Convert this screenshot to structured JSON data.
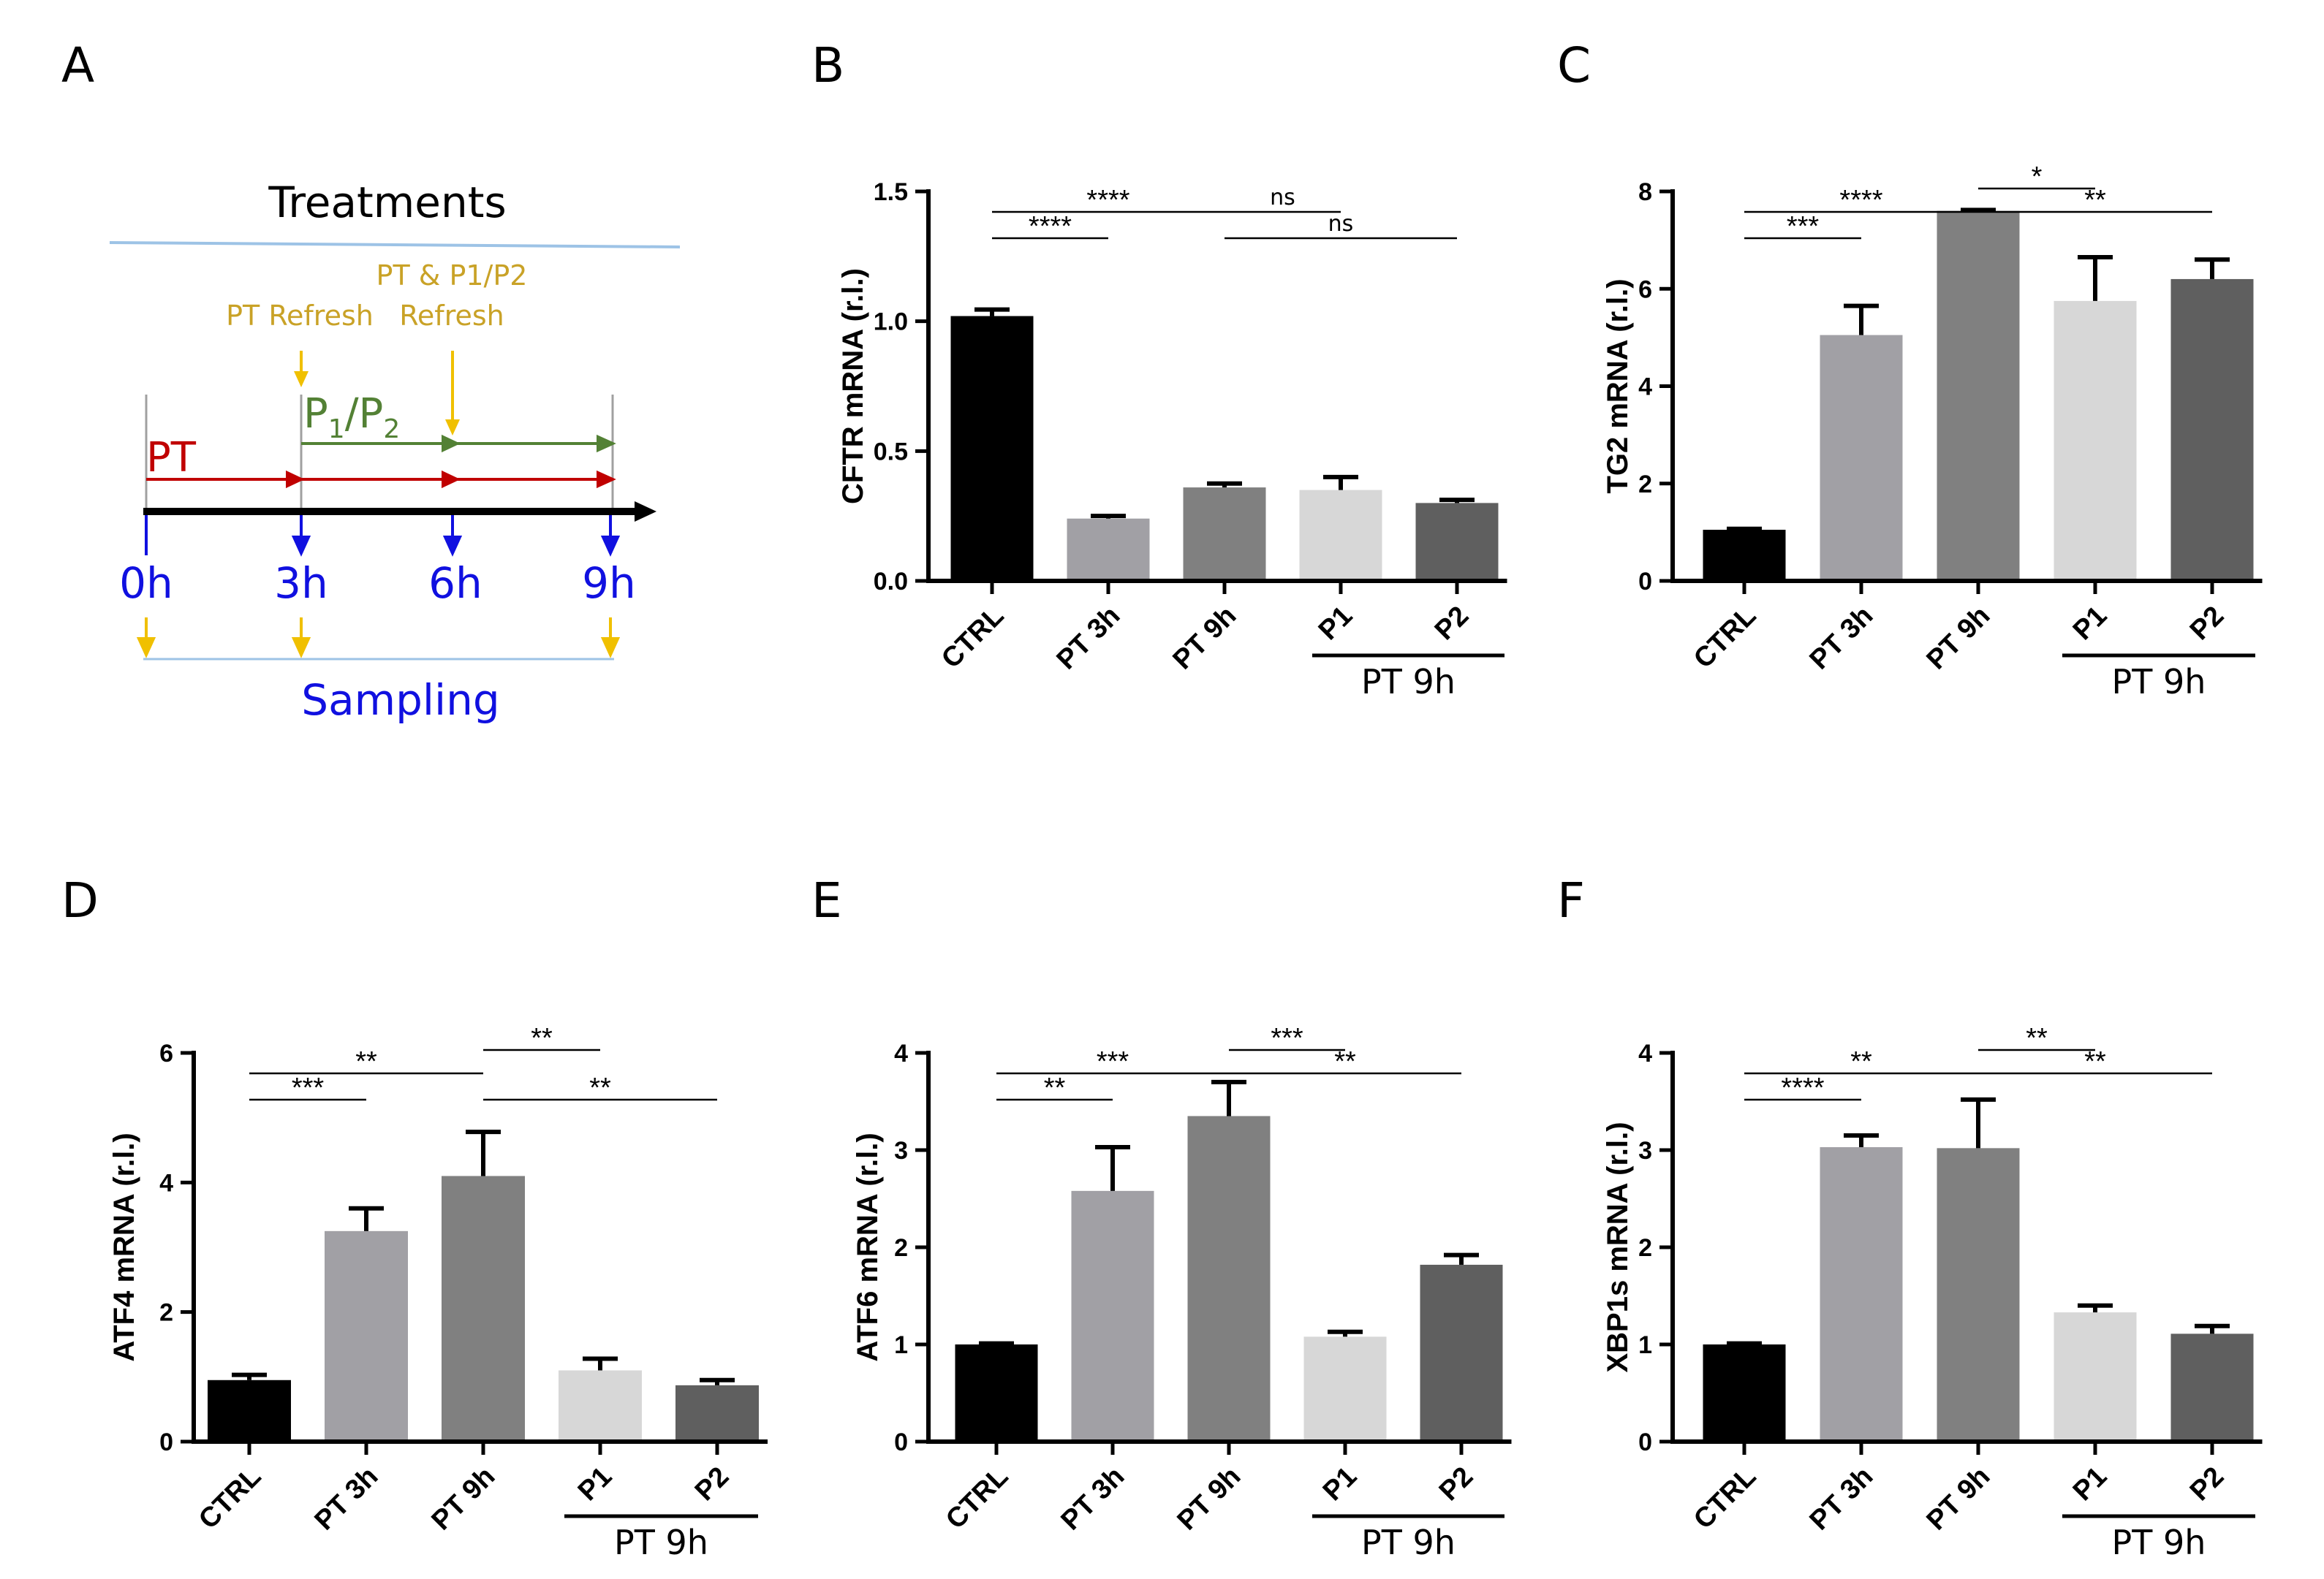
{
  "panel_a": {
    "letter": "A",
    "title": "Treatments",
    "pt_refresh": "PT Refresh",
    "pt_p1p2_line1": "PT & P1/P2",
    "pt_p1p2_line2": "Refresh",
    "p_label_main": "P",
    "p_label_sub1": "1",
    "p_label_slash": "/P",
    "p_label_sub2": "2",
    "pt_label": "PT",
    "times": [
      "0h",
      "3h",
      "6h",
      "9h"
    ],
    "sampling": "Sampling",
    "colors": {
      "title_line": "#9dc3e6",
      "refresh": "#c9a227",
      "refresh_arrow": "#f0c000",
      "p1p2": "#538135",
      "pt": "#c00000",
      "time": "#1010e0",
      "sampling": "#1010e0",
      "sampling_arrow": "#f0c000",
      "axis": "#000000",
      "tick": "#a0a0a0"
    }
  },
  "chart_data": [
    {
      "id": "B",
      "letter": "B",
      "type": "bar",
      "ylabel": "CFTR mRNA (r.l.)",
      "categories": [
        "CTRL",
        "PT 3h",
        "PT 9h",
        "P1",
        "P2"
      ],
      "values": [
        1.02,
        0.24,
        0.36,
        0.35,
        0.3
      ],
      "errors": [
        0.025,
        0.01,
        0.015,
        0.05,
        0.012
      ],
      "ylim": [
        0,
        1.5
      ],
      "yticks": [
        0,
        0.5,
        1.0,
        1.5
      ],
      "ytick_labels": [
        "0.0",
        "0.5",
        "1.0",
        "1.5"
      ],
      "group_label": "PT 9h",
      "significance": [
        {
          "from": 0,
          "to": 1,
          "label": "****",
          "level": 1
        },
        {
          "from": 0,
          "to": 2,
          "label": "****",
          "level": 2
        },
        {
          "from": 2,
          "to": 3,
          "label": "ns",
          "level": 2
        },
        {
          "from": 2,
          "to": 4,
          "label": "ns",
          "level": 1
        }
      ]
    },
    {
      "id": "C",
      "letter": "C",
      "type": "bar",
      "ylabel": "TG2 mRNA (r.l.)",
      "categories": [
        "CTRL",
        "PT 3h",
        "PT 9h",
        "P1",
        "P2"
      ],
      "values": [
        1.05,
        5.05,
        7.6,
        5.75,
        6.2
      ],
      "errors": [
        0.02,
        0.6,
        0.02,
        0.9,
        0.4
      ],
      "ylim": [
        0,
        8
      ],
      "yticks": [
        0,
        2,
        4,
        6,
        8
      ],
      "ytick_labels": [
        "0",
        "2",
        "4",
        "6",
        "8"
      ],
      "group_label": "PT 9h",
      "significance": [
        {
          "from": 0,
          "to": 1,
          "label": "***",
          "level": 1
        },
        {
          "from": 0,
          "to": 2,
          "label": "****",
          "level": 2
        },
        {
          "from": 2,
          "to": 3,
          "label": "*",
          "level": 3
        },
        {
          "from": 2,
          "to": 4,
          "label": "**",
          "level": 2
        }
      ]
    },
    {
      "id": "D",
      "letter": "D",
      "type": "bar",
      "ylabel": "ATF4 mRNA (r.l.)",
      "categories": [
        "CTRL",
        "PT 3h",
        "PT 9h",
        "P1",
        "P2"
      ],
      "values": [
        0.95,
        3.25,
        4.1,
        1.1,
        0.87
      ],
      "errors": [
        0.08,
        0.35,
        0.68,
        0.18,
        0.08
      ],
      "ylim": [
        0,
        6
      ],
      "yticks": [
        0,
        2,
        4,
        6
      ],
      "ytick_labels": [
        "0",
        "2",
        "4",
        "6"
      ],
      "group_label": "PT 9h",
      "significance": [
        {
          "from": 0,
          "to": 1,
          "label": "***",
          "level": 1
        },
        {
          "from": 0,
          "to": 2,
          "label": "**",
          "level": 2
        },
        {
          "from": 2,
          "to": 3,
          "label": "**",
          "level": 3
        },
        {
          "from": 2,
          "to": 4,
          "label": "**",
          "level": 1
        }
      ]
    },
    {
      "id": "E",
      "letter": "E",
      "type": "bar",
      "ylabel": "ATF6 mRNA (r.l.)",
      "categories": [
        "CTRL",
        "PT 3h",
        "PT 9h",
        "P1",
        "P2"
      ],
      "values": [
        1.0,
        2.58,
        3.35,
        1.08,
        1.82
      ],
      "errors": [
        0.01,
        0.45,
        0.35,
        0.05,
        0.1
      ],
      "ylim": [
        0,
        4
      ],
      "yticks": [
        0,
        1,
        2,
        3,
        4
      ],
      "ytick_labels": [
        "0",
        "1",
        "2",
        "3",
        "4"
      ],
      "group_label": "PT 9h",
      "significance": [
        {
          "from": 0,
          "to": 1,
          "label": "**",
          "level": 1
        },
        {
          "from": 0,
          "to": 2,
          "label": "***",
          "level": 2
        },
        {
          "from": 2,
          "to": 3,
          "label": "***",
          "level": 3
        },
        {
          "from": 2,
          "to": 4,
          "label": "**",
          "level": 2
        }
      ]
    },
    {
      "id": "F",
      "letter": "F",
      "type": "bar",
      "ylabel": "XBP1s mRNA (r.l.)",
      "categories": [
        "CTRL",
        "PT 3h",
        "PT 9h",
        "P1",
        "P2"
      ],
      "values": [
        1.0,
        3.03,
        3.02,
        1.33,
        1.11
      ],
      "errors": [
        0.01,
        0.12,
        0.5,
        0.07,
        0.08
      ],
      "ylim": [
        0,
        4
      ],
      "yticks": [
        0,
        1,
        2,
        3,
        4
      ],
      "ytick_labels": [
        "0",
        "1",
        "2",
        "3",
        "4"
      ],
      "group_label": "PT 9h",
      "significance": [
        {
          "from": 0,
          "to": 1,
          "label": "****",
          "level": 1
        },
        {
          "from": 0,
          "to": 2,
          "label": "**",
          "level": 2
        },
        {
          "from": 2,
          "to": 3,
          "label": "**",
          "level": 3
        },
        {
          "from": 2,
          "to": 4,
          "label": "**",
          "level": 2
        }
      ]
    }
  ],
  "bar_colors": [
    "#000000",
    "#a1a0a5",
    "#808080",
    "#d7d7d7",
    "#5f5f5f"
  ]
}
